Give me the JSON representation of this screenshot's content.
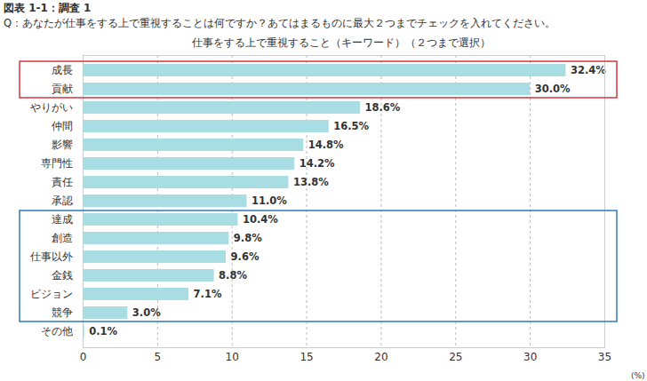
{
  "chart_data": {
    "type": "bar",
    "orientation": "horizontal",
    "header": "図表 1-1：調査 1",
    "subtitle": "Q：あなたが仕事をする上で重視することは何ですか？あてはまるものに最大２つまでチェックを入れてください。",
    "title": "仕事をする上で重視すること（キーワード）（２つまで選択）",
    "xlabel": "(%)",
    "categories": [
      "成長",
      "貢献",
      "やりがい",
      "仲間",
      "影響",
      "専門性",
      "責任",
      "承認",
      "達成",
      "創造",
      "仕事以外",
      "金銭",
      "ビジョン",
      "競争",
      "その他"
    ],
    "values": [
      32.4,
      30.0,
      18.6,
      16.5,
      14.8,
      14.2,
      13.8,
      11.0,
      10.4,
      9.8,
      9.6,
      8.8,
      7.1,
      3.0,
      0.1
    ],
    "value_labels": [
      "32.4%",
      "30.0%",
      "18.6%",
      "16.5%",
      "14.8%",
      "14.2%",
      "13.8%",
      "11.0%",
      "10.4%",
      "9.8%",
      "9.6%",
      "8.8%",
      "7.1%",
      "3.0%",
      "0.1%"
    ],
    "color": "#a8dde3",
    "xlim": [
      0,
      35
    ],
    "xticks": [
      0,
      5,
      10,
      15,
      20,
      25,
      30,
      35
    ],
    "grid": true,
    "data_labels": true
  }
}
